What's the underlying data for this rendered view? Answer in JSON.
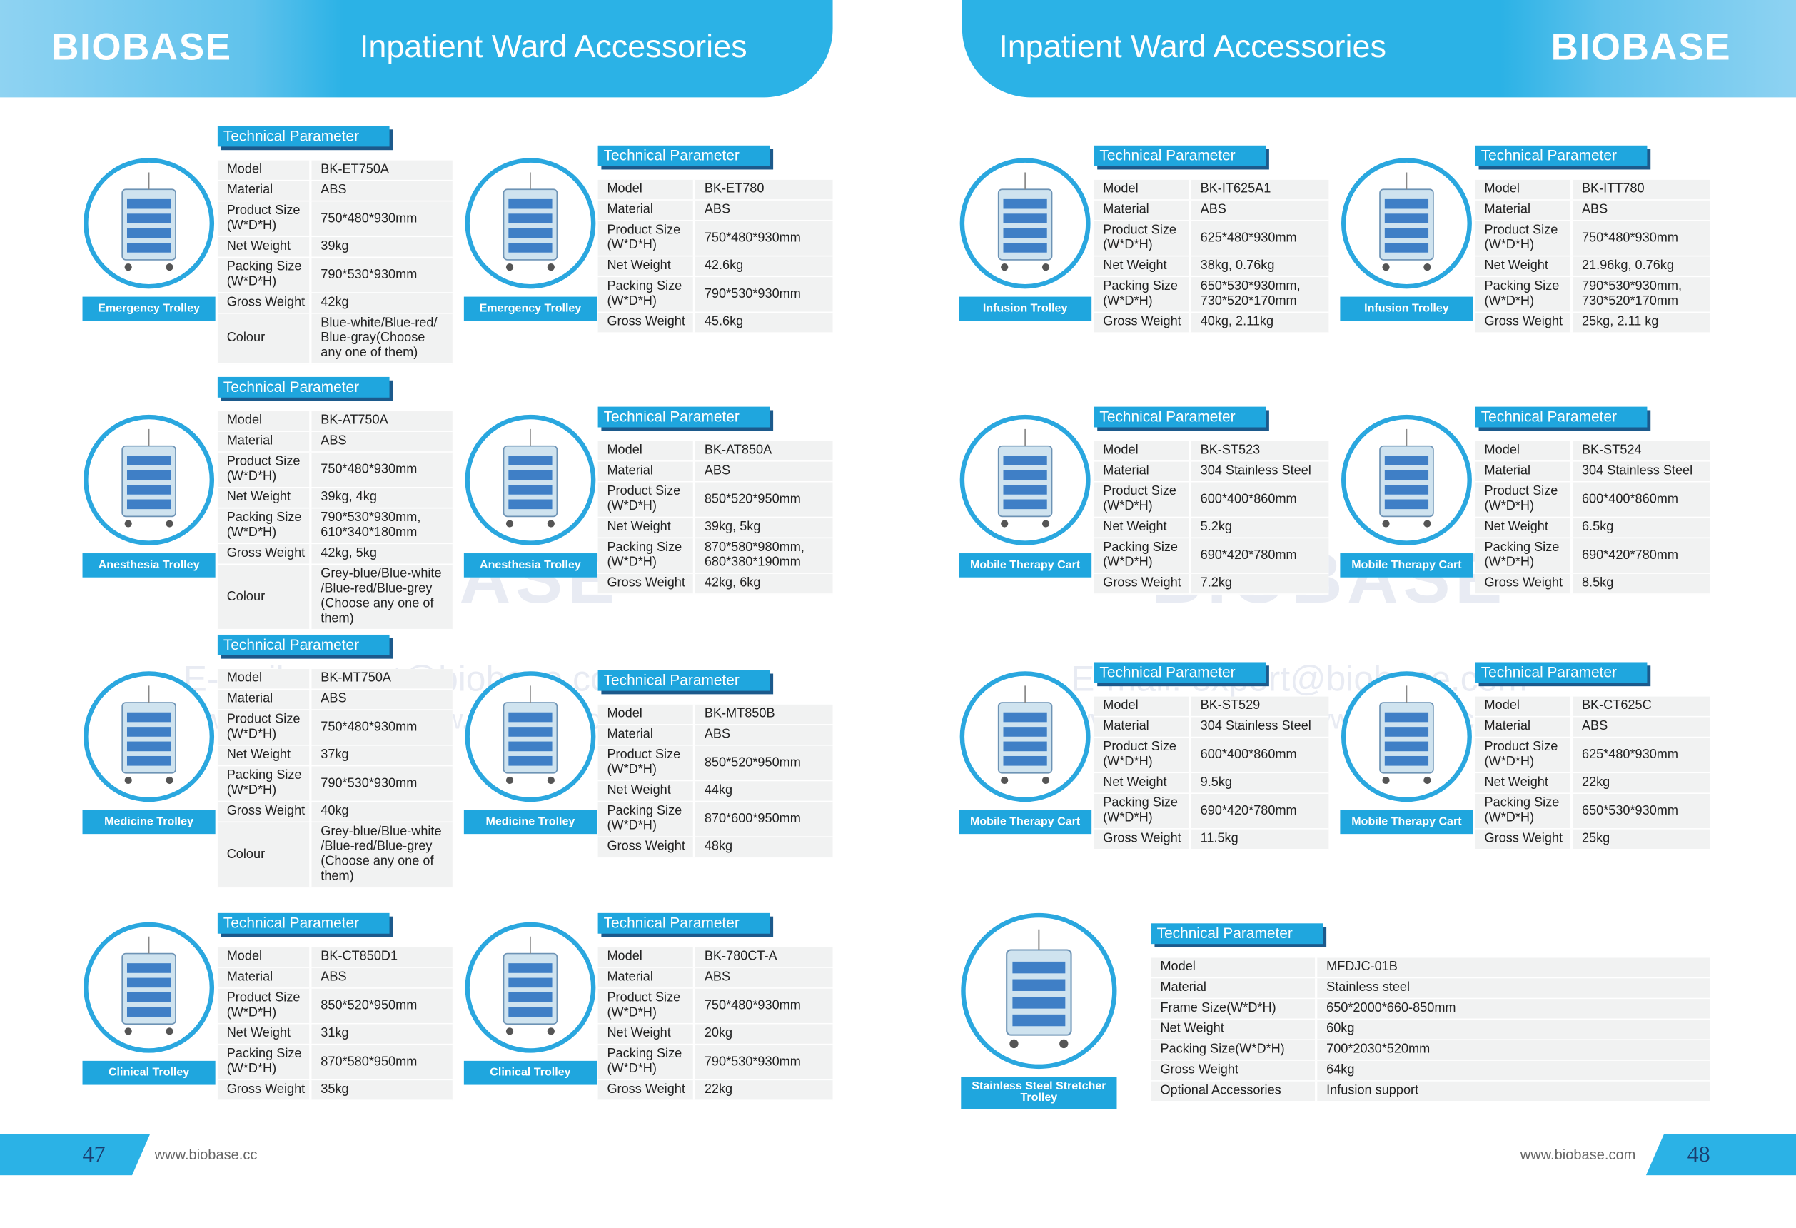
{
  "pages": [
    {
      "brand": "BIOBASE",
      "title": "Inpatient Ward Accessories",
      "number": "47",
      "website": "www.biobase.cc",
      "watermark": {
        "brand": "BIOBASE",
        "email": "E-mail: export@biobase.com",
        "web": "www.biobase.cc / www.biobase.cc"
      },
      "products": [
        {
          "heading": "Technical Parameter",
          "caption": "Emergency Trolley",
          "rows": [
            [
              "Model",
              "BK-ET750A"
            ],
            [
              "Material",
              "ABS"
            ],
            [
              "Product Size\n(W*D*H)",
              "750*480*930mm"
            ],
            [
              "Net Weight",
              "39kg"
            ],
            [
              "Packing Size\n(W*D*H)",
              "790*530*930mm"
            ],
            [
              "Gross Weight",
              "42kg"
            ],
            [
              "Colour",
              "Blue-white/Blue-red/\nBlue-gray(Choose\nany one of them)"
            ]
          ]
        },
        {
          "heading": "Technical Parameter",
          "caption": "Emergency Trolley",
          "rows": [
            [
              "Model",
              "BK-ET780"
            ],
            [
              "Material",
              "ABS"
            ],
            [
              "Product Size\n(W*D*H)",
              "750*480*930mm"
            ],
            [
              "Net Weight",
              "42.6kg"
            ],
            [
              "Packing Size\n(W*D*H)",
              "790*530*930mm"
            ],
            [
              "Gross Weight",
              "45.6kg"
            ]
          ]
        },
        {
          "heading": "Technical Parameter",
          "caption": "Anesthesia Trolley",
          "rows": [
            [
              "Model",
              "BK-AT750A"
            ],
            [
              "Material",
              "ABS"
            ],
            [
              "Product Size\n(W*D*H)",
              "750*480*930mm"
            ],
            [
              "Net Weight",
              "39kg, 4kg"
            ],
            [
              "Packing Size\n(W*D*H)",
              "790*530*930mm,\n610*340*180mm"
            ],
            [
              "Gross Weight",
              "42kg, 5kg"
            ],
            [
              "Colour",
              "Grey-blue/Blue-white\n/Blue-red/Blue-grey\n(Choose any one of\nthem)"
            ]
          ]
        },
        {
          "heading": "Technical Parameter",
          "caption": "Anesthesia Trolley",
          "rows": [
            [
              "Model",
              "BK-AT850A"
            ],
            [
              "Material",
              "ABS"
            ],
            [
              "Product Size\n(W*D*H)",
              "850*520*950mm"
            ],
            [
              "Net Weight",
              "39kg, 5kg"
            ],
            [
              "Packing Size\n(W*D*H)",
              "870*580*980mm,\n680*380*190mm"
            ],
            [
              "Gross Weight",
              "42kg, 6kg"
            ]
          ]
        },
        {
          "heading": "Technical Parameter",
          "caption": "Medicine Trolley",
          "rows": [
            [
              "Model",
              "BK-MT750A"
            ],
            [
              "Material",
              "ABS"
            ],
            [
              "Product Size\n(W*D*H)",
              "750*480*930mm"
            ],
            [
              "Net Weight",
              "37kg"
            ],
            [
              "Packing Size\n(W*D*H)",
              "790*530*930mm"
            ],
            [
              "Gross Weight",
              "40kg"
            ],
            [
              "Colour",
              "Grey-blue/Blue-white\n/Blue-red/Blue-grey\n(Choose any one of\nthem)"
            ]
          ]
        },
        {
          "heading": "Technical Parameter",
          "caption": "Medicine Trolley",
          "rows": [
            [
              "Model",
              "BK-MT850B"
            ],
            [
              "Material",
              "ABS"
            ],
            [
              "Product Size\n(W*D*H)",
              "850*520*950mm"
            ],
            [
              "Net Weight",
              "44kg"
            ],
            [
              "Packing Size\n(W*D*H)",
              "870*600*950mm"
            ],
            [
              "Gross Weight",
              "48kg"
            ]
          ]
        },
        {
          "heading": "Technical Parameter",
          "caption": "Clinical Trolley",
          "rows": [
            [
              "Model",
              "BK-CT850D1"
            ],
            [
              "Material",
              "ABS"
            ],
            [
              "Product Size\n(W*D*H)",
              "850*520*950mm"
            ],
            [
              "Net Weight",
              "31kg"
            ],
            [
              "Packing Size\n(W*D*H)",
              "870*580*950mm"
            ],
            [
              "Gross Weight",
              "35kg"
            ]
          ]
        },
        {
          "heading": "Technical Parameter",
          "caption": "Clinical Trolley",
          "rows": [
            [
              "Model",
              "BK-780CT-A"
            ],
            [
              "Material",
              "ABS"
            ],
            [
              "Product Size\n(W*D*H)",
              "750*480*930mm"
            ],
            [
              "Net Weight",
              "20kg"
            ],
            [
              "Packing Size\n(W*D*H)",
              "790*530*930mm"
            ],
            [
              "Gross Weight",
              "22kg"
            ]
          ]
        }
      ]
    },
    {
      "brand": "BIOBASE",
      "title": "Inpatient Ward Accessories",
      "number": "48",
      "website": "www.biobase.com",
      "watermark": {
        "brand": "BIOBASE",
        "email": "E-mail: export@biobase.com",
        "web": "www.biobase.cc / www.biobase.cc"
      },
      "products": [
        {
          "heading": "Technical Parameter",
          "caption": "Infusion Trolley",
          "rows": [
            [
              "Model",
              "BK-IT625A1"
            ],
            [
              "Material",
              "ABS"
            ],
            [
              "Product Size\n(W*D*H)",
              "625*480*930mm"
            ],
            [
              "Net Weight",
              "38kg, 0.76kg"
            ],
            [
              "Packing Size\n(W*D*H)",
              "650*530*930mm,\n730*520*170mm"
            ],
            [
              "Gross Weight",
              "40kg, 2.11kg"
            ]
          ]
        },
        {
          "heading": "Technical Parameter",
          "caption": "Infusion Trolley",
          "rows": [
            [
              "Model",
              "BK-ITT780"
            ],
            [
              "Material",
              "ABS"
            ],
            [
              "Product Size\n(W*D*H)",
              "750*480*930mm"
            ],
            [
              "Net Weight",
              "21.96kg, 0.76kg"
            ],
            [
              "Packing Size\n(W*D*H)",
              "790*530*930mm,\n730*520*170mm"
            ],
            [
              "Gross Weight",
              "25kg, 2.11 kg"
            ]
          ]
        },
        {
          "heading": "Technical Parameter",
          "caption": "Mobile Therapy Cart",
          "rows": [
            [
              "Model",
              "BK-ST523"
            ],
            [
              "Material",
              "304 Stainless Steel"
            ],
            [
              "Product Size\n(W*D*H)",
              "600*400*860mm"
            ],
            [
              "Net Weight",
              "5.2kg"
            ],
            [
              "Packing Size\n(W*D*H)",
              "690*420*780mm"
            ],
            [
              "Gross Weight",
              "7.2kg"
            ]
          ]
        },
        {
          "heading": "Technical Parameter",
          "caption": "Mobile Therapy Cart",
          "rows": [
            [
              "Model",
              "BK-ST524"
            ],
            [
              "Material",
              "304 Stainless Steel"
            ],
            [
              "Product Size\n(W*D*H)",
              "600*400*860mm"
            ],
            [
              "Net Weight",
              "6.5kg"
            ],
            [
              "Packing Size\n(W*D*H)",
              "690*420*780mm"
            ],
            [
              "Gross Weight",
              "8.5kg"
            ]
          ]
        },
        {
          "heading": "Technical Parameter",
          "caption": "Mobile Therapy Cart",
          "rows": [
            [
              "Model",
              "BK-ST529"
            ],
            [
              "Material",
              "304 Stainless Steel"
            ],
            [
              "Product Size\n(W*D*H)",
              "600*400*860mm"
            ],
            [
              "Net Weight",
              "9.5kg"
            ],
            [
              "Packing Size\n(W*D*H)",
              "690*420*780mm"
            ],
            [
              "Gross Weight",
              "11.5kg"
            ]
          ]
        },
        {
          "heading": "Technical Parameter",
          "caption": "Mobile Therapy Cart",
          "rows": [
            [
              "Model",
              "BK-CT625C"
            ],
            [
              "Material",
              "ABS"
            ],
            [
              "Product Size\n(W*D*H)",
              "625*480*930mm"
            ],
            [
              "Net Weight",
              "22kg"
            ],
            [
              "Packing Size\n(W*D*H)",
              "650*530*930mm"
            ],
            [
              "Gross Weight",
              "25kg"
            ]
          ]
        },
        {
          "heading": "Technical Parameter",
          "caption": "Stainless Steel Stretcher Trolley",
          "rows": [
            [
              "Model",
              "MFDJC-01B"
            ],
            [
              "Material",
              "Stainless steel"
            ],
            [
              "Frame Size(W*D*H)",
              "650*2000*660-850mm"
            ],
            [
              "Net Weight",
              "60kg"
            ],
            [
              "Packing Size(W*D*H)",
              "700*2030*520mm"
            ],
            [
              "Gross Weight",
              "64kg"
            ],
            [
              "Optional Accessories",
              "Infusion support"
            ]
          ]
        }
      ]
    }
  ]
}
